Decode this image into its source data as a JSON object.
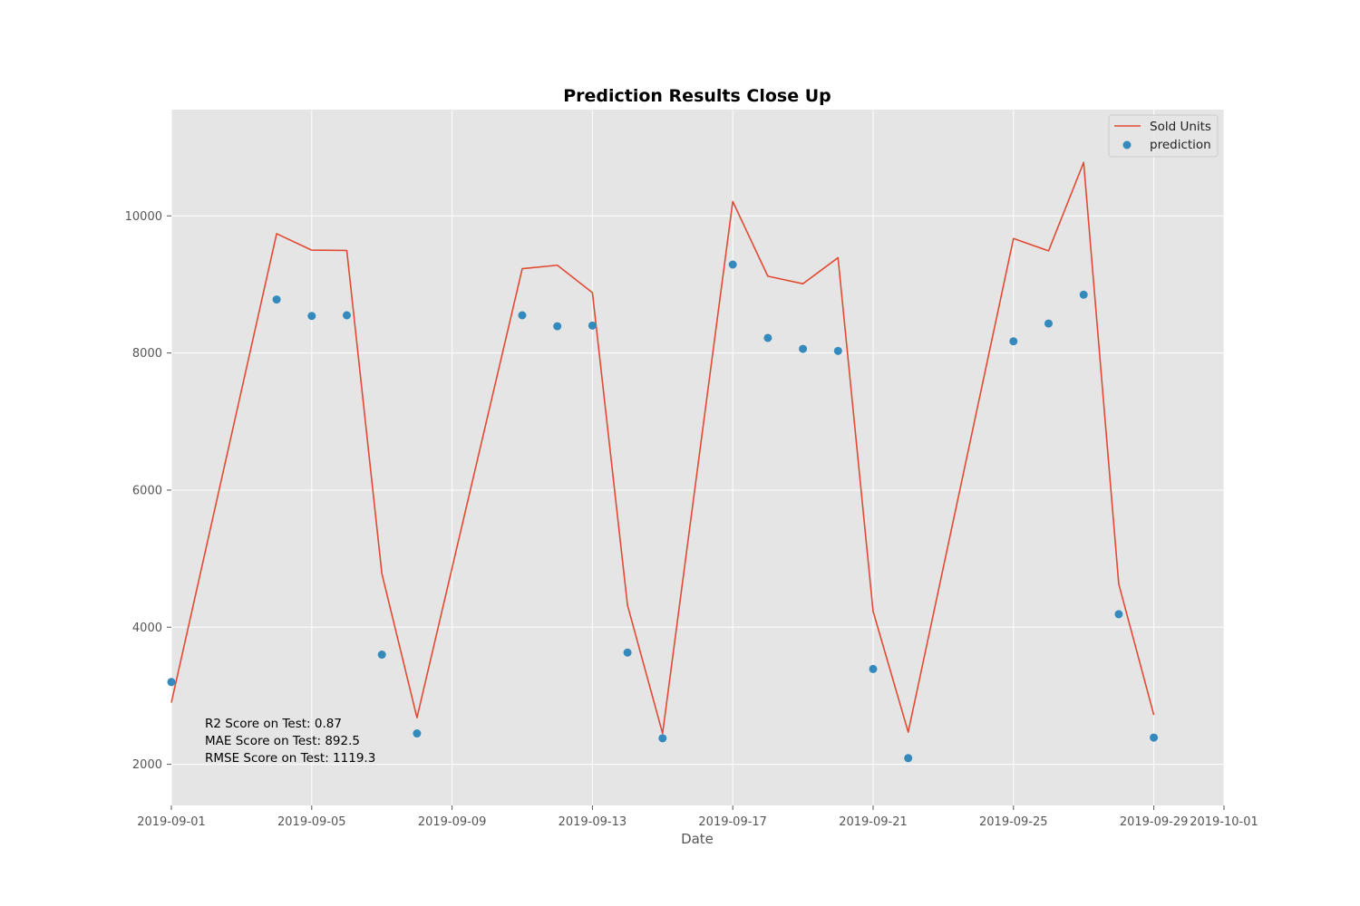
{
  "chart_data": {
    "type": "line",
    "title": "Prediction Results Close Up",
    "xlabel": "Date",
    "ylabel": "",
    "xlim": [
      "2019-09-01",
      "2019-10-01"
    ],
    "ylim": [
      1400,
      11550
    ],
    "x_ticks": [
      "2019-09-01",
      "2019-09-05",
      "2019-09-09",
      "2019-09-13",
      "2019-09-17",
      "2019-09-21",
      "2019-09-25",
      "2019-09-29",
      "2019-10-01"
    ],
    "y_ticks": [
      2000,
      4000,
      6000,
      8000,
      10000
    ],
    "grid": true,
    "legend_position": "top-right",
    "series": [
      {
        "name": "Sold Units",
        "kind": "line",
        "color": "#E24A33",
        "points": [
          {
            "x": "2019-09-01",
            "y": 2900
          },
          {
            "x": "2019-09-04",
            "y": 9740
          },
          {
            "x": "2019-09-05",
            "y": 9500
          },
          {
            "x": "2019-09-06",
            "y": 9495
          },
          {
            "x": "2019-09-07",
            "y": 4780
          },
          {
            "x": "2019-09-08",
            "y": 2680
          },
          {
            "x": "2019-09-11",
            "y": 9230
          },
          {
            "x": "2019-09-12",
            "y": 9280
          },
          {
            "x": "2019-09-13",
            "y": 8880
          },
          {
            "x": "2019-09-14",
            "y": 4320
          },
          {
            "x": "2019-09-15",
            "y": 2450
          },
          {
            "x": "2019-09-17",
            "y": 10210
          },
          {
            "x": "2019-09-18",
            "y": 9120
          },
          {
            "x": "2019-09-19",
            "y": 9010
          },
          {
            "x": "2019-09-20",
            "y": 9390
          },
          {
            "x": "2019-09-21",
            "y": 4230
          },
          {
            "x": "2019-09-22",
            "y": 2470
          },
          {
            "x": "2019-09-25",
            "y": 9670
          },
          {
            "x": "2019-09-26",
            "y": 9490
          },
          {
            "x": "2019-09-27",
            "y": 10780
          },
          {
            "x": "2019-09-28",
            "y": 4630
          },
          {
            "x": "2019-09-29",
            "y": 2720
          }
        ]
      },
      {
        "name": "prediction",
        "kind": "scatter",
        "color": "#348ABD",
        "points": [
          {
            "x": "2019-09-01",
            "y": 3200
          },
          {
            "x": "2019-09-04",
            "y": 8780
          },
          {
            "x": "2019-09-05",
            "y": 8540
          },
          {
            "x": "2019-09-06",
            "y": 8550
          },
          {
            "x": "2019-09-07",
            "y": 3600
          },
          {
            "x": "2019-09-08",
            "y": 2450
          },
          {
            "x": "2019-09-11",
            "y": 8550
          },
          {
            "x": "2019-09-12",
            "y": 8390
          },
          {
            "x": "2019-09-13",
            "y": 8400
          },
          {
            "x": "2019-09-14",
            "y": 3630
          },
          {
            "x": "2019-09-15",
            "y": 2380
          },
          {
            "x": "2019-09-17",
            "y": 9290
          },
          {
            "x": "2019-09-18",
            "y": 8220
          },
          {
            "x": "2019-09-19",
            "y": 8060
          },
          {
            "x": "2019-09-20",
            "y": 8030
          },
          {
            "x": "2019-09-21",
            "y": 3390
          },
          {
            "x": "2019-09-22",
            "y": 2090
          },
          {
            "x": "2019-09-25",
            "y": 8170
          },
          {
            "x": "2019-09-26",
            "y": 8430
          },
          {
            "x": "2019-09-27",
            "y": 8850
          },
          {
            "x": "2019-09-28",
            "y": 4190
          },
          {
            "x": "2019-09-29",
            "y": 2390
          }
        ]
      }
    ],
    "annotations": [
      "R2 Score on Test: 0.87",
      "MAE Score on Test: 892.5",
      "RMSE Score on Test: 1119.3"
    ],
    "colors": {
      "plot_background": "#E5E5E5",
      "grid": "#FFFFFF"
    }
  }
}
